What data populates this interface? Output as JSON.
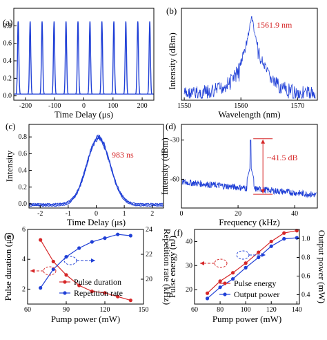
{
  "colors": {
    "blue": "#1f3fd6",
    "red": "#d62728",
    "axis": "#000000"
  },
  "chart_data": [
    {
      "panel": "(a)",
      "type": "line",
      "xlabel": "Time Delay (μs)",
      "ylabel": "Intensity",
      "xlim": [
        -240,
        240
      ],
      "ylim": [
        -0.05,
        1.0
      ],
      "xticks": [
        "-200",
        "-100",
        "0",
        "100",
        "200"
      ],
      "yticks": [
        "0.0",
        "0.2",
        "0.4",
        "0.6",
        "0.8"
      ],
      "series": [
        {
          "pulse_period_us": 40.9,
          "pulse_times_us": [
            -225,
            -184,
            -143,
            -102,
            -61,
            -20,
            21,
            62,
            103,
            144,
            185,
            226
          ],
          "peak": 0.85,
          "baseline": 0.02
        }
      ]
    },
    {
      "panel": "(b)",
      "type": "line",
      "xlabel": "Wavelength (nm)",
      "ylabel": "Intensity (dBm)",
      "xlim": [
        1549.5,
        1573.5
      ],
      "xticks": [
        "1550",
        "1560",
        "1570"
      ],
      "annotations": [
        "1561.9 nm"
      ],
      "series": [
        {
          "center_nm": 1561.9,
          "peak_level": 0.95,
          "noise_floor": 0.15
        }
      ]
    },
    {
      "panel": "(c)",
      "type": "line",
      "xlabel": "Time Delay (μs)",
      "ylabel": "Intensity",
      "xlim": [
        -2.4,
        2.4
      ],
      "ylim": [
        -0.05,
        0.95
      ],
      "xticks": [
        "-2",
        "-1",
        "0",
        "1",
        "2"
      ],
      "yticks": [
        "0.0",
        "0.2",
        "0.4",
        "0.6",
        "0.8"
      ],
      "annotations": [
        "983 ns"
      ],
      "series": [
        {
          "center_us": 0.08,
          "peak": 0.8,
          "fwhm_us": 0.983
        }
      ]
    },
    {
      "panel": "(d)",
      "type": "line",
      "xlabel": "Frequency (kHz)",
      "ylabel": "Intensity (dBm)",
      "xlim": [
        0,
        48
      ],
      "ylim": [
        -82,
        -18
      ],
      "xticks": [
        "0",
        "20",
        "40"
      ],
      "yticks": [
        "-60",
        "-30"
      ],
      "annotations": [
        "~41.5 dB"
      ],
      "series": [
        {
          "peak_khz": 24.4,
          "peak_dbm": -30,
          "noise_dbm": [
            -62,
            -72
          ]
        }
      ]
    },
    {
      "panel": "(e)",
      "type": "line",
      "xlabel": "Pump power (mW)",
      "ylabel": "Pulse duration (μs)",
      "ylabel_right": "Repetition rate (kHz)",
      "xlim": [
        60,
        150
      ],
      "ylim": [
        1.0,
        6.0
      ],
      "ylim_right": [
        18.0,
        24.0
      ],
      "xticks": [
        "60",
        "90",
        "120",
        "150"
      ],
      "yticks": [
        "2",
        "4",
        "6"
      ],
      "yticks_right": [
        "20",
        "22",
        "24"
      ],
      "x": [
        70,
        80,
        90,
        100,
        110,
        120,
        130,
        140
      ],
      "series": [
        {
          "name": "Pulse duration",
          "axis": "left",
          "color": "#d62728",
          "values": [
            5.3,
            3.85,
            2.95,
            2.25,
            1.85,
            1.75,
            1.5,
            1.25
          ]
        },
        {
          "name": "Repetition rate",
          "axis": "right",
          "color": "#1f3fd6",
          "values": [
            19.3,
            20.8,
            21.8,
            22.5,
            23.0,
            23.3,
            23.6,
            23.5
          ]
        }
      ]
    },
    {
      "panel": "(f)",
      "type": "line",
      "xlabel": "Pump power (mW)",
      "ylabel": "Pulse energy (nJ)",
      "ylabel_right": "Output power (mW)",
      "xlim": [
        60,
        142
      ],
      "ylim": [
        14,
        45
      ],
      "ylim_right": [
        0.3,
        1.1
      ],
      "xticks": [
        "60",
        "80",
        "100",
        "120",
        "140"
      ],
      "yticks": [
        "20",
        "30",
        "40"
      ],
      "yticks_right": [
        "0.4",
        "0.6",
        "0.8",
        "1.0"
      ],
      "x": [
        70,
        80,
        90,
        100,
        110,
        120,
        130,
        140
      ],
      "series": [
        {
          "name": "Pulse energy",
          "axis": "left",
          "color": "#d62728",
          "values": [
            18.5,
            23.5,
            27.0,
            31.0,
            35.5,
            40.0,
            43.5,
            44.5
          ]
        },
        {
          "name": "Output power",
          "axis": "right",
          "color": "#1f3fd6",
          "values": [
            0.36,
            0.48,
            0.57,
            0.69,
            0.8,
            0.92,
            1.0,
            1.01
          ]
        }
      ]
    }
  ]
}
